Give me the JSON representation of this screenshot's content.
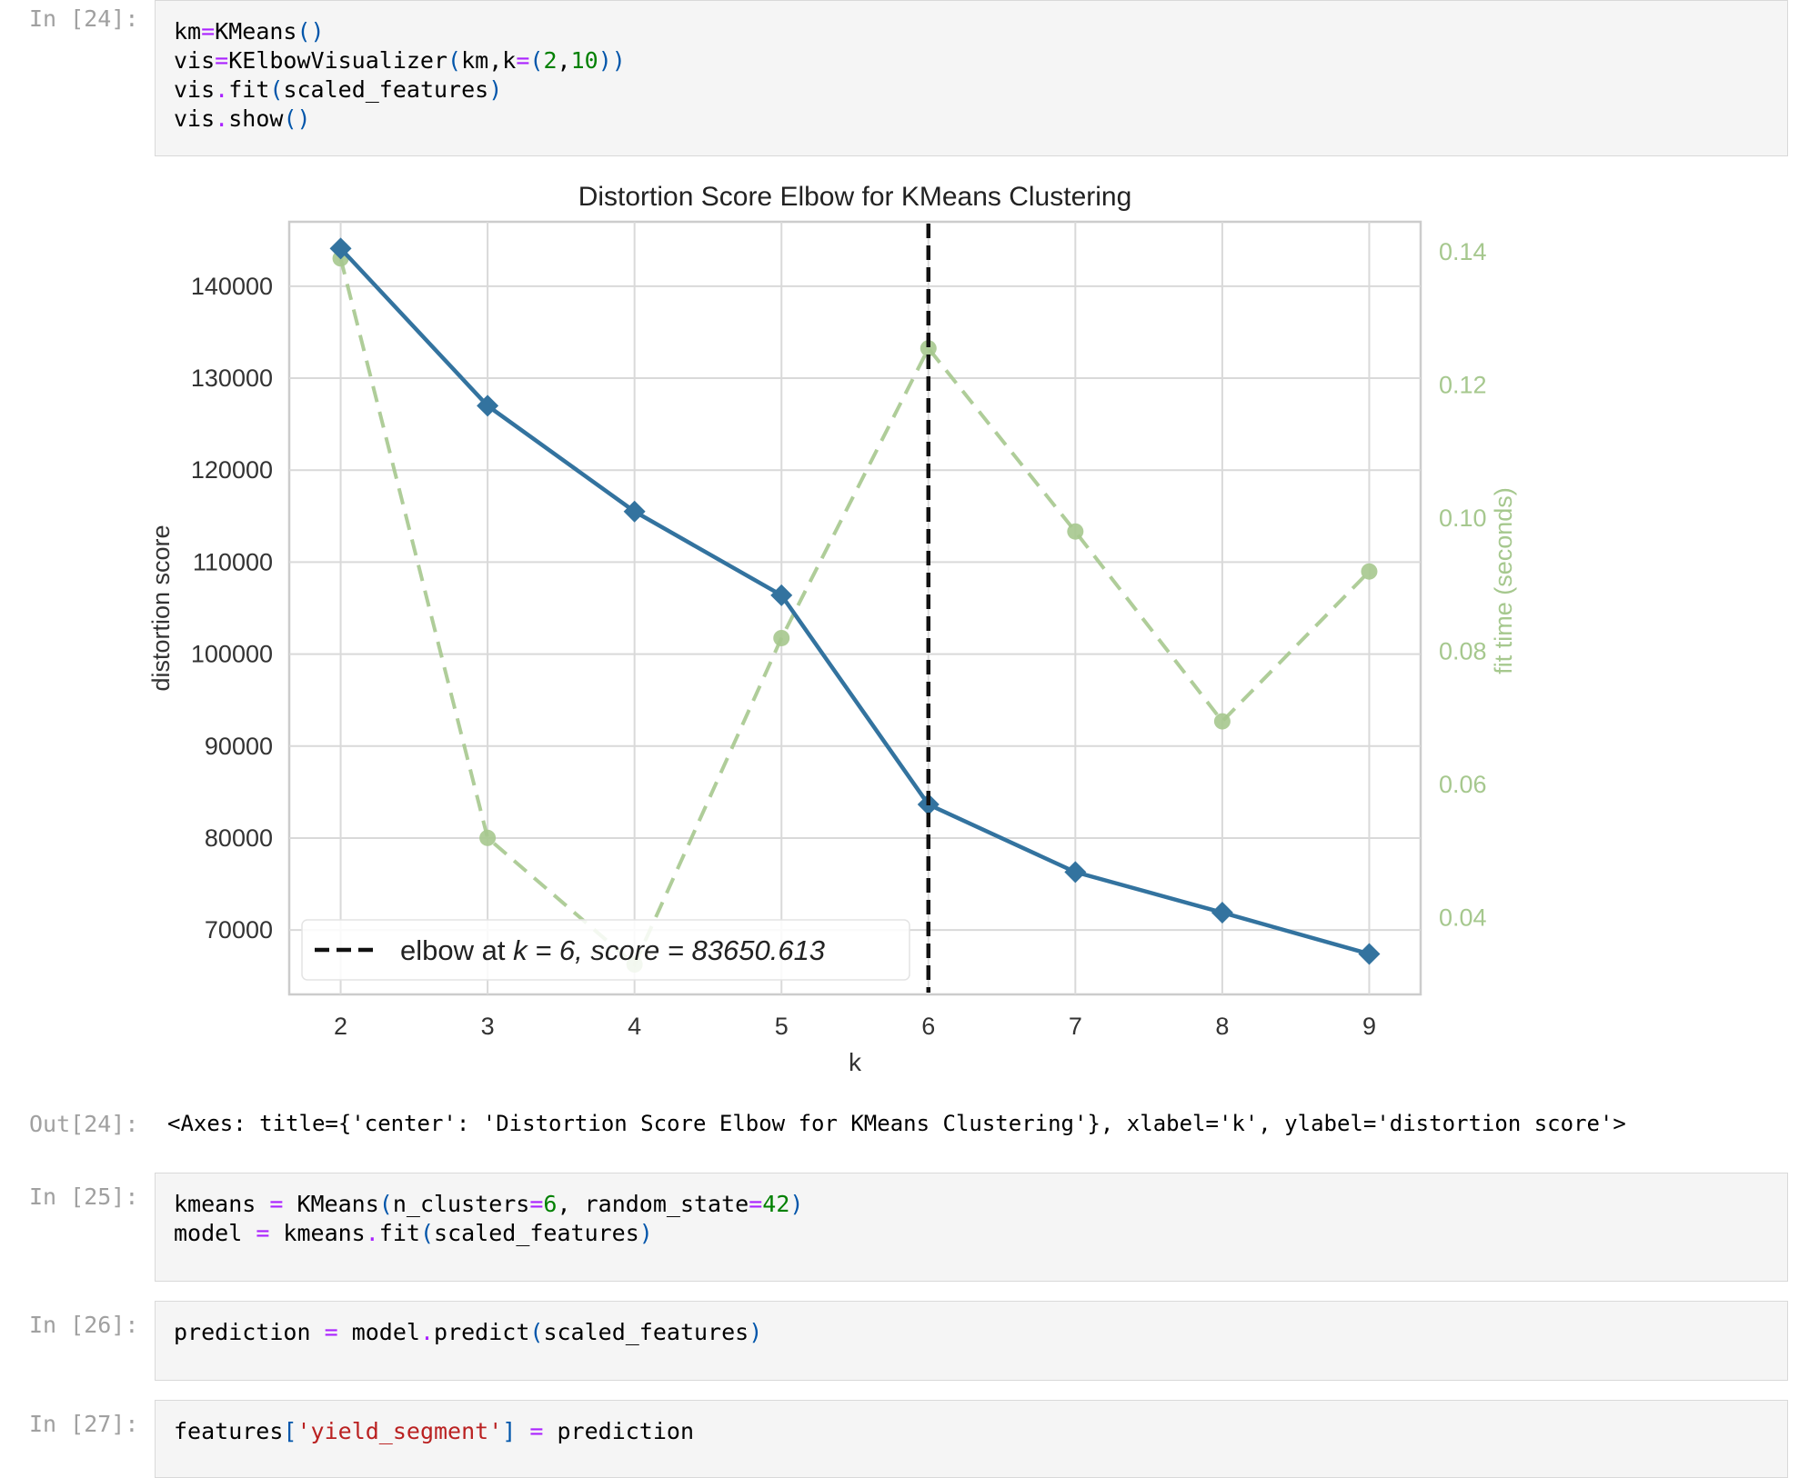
{
  "cells": [
    {
      "prompt": "In [24]:",
      "code_lines": [
        [
          {
            "t": "km"
          },
          {
            "t": "=",
            "c": "op"
          },
          {
            "t": "KMeans"
          },
          {
            "t": "()",
            "c": "paren"
          }
        ],
        [
          {
            "t": "vis"
          },
          {
            "t": "=",
            "c": "op"
          },
          {
            "t": "KElbowVisualizer"
          },
          {
            "t": "(",
            "c": "paren"
          },
          {
            "t": "km,k"
          },
          {
            "t": "=",
            "c": "op"
          },
          {
            "t": "(",
            "c": "paren"
          },
          {
            "t": "2",
            "c": "num"
          },
          {
            "t": ","
          },
          {
            "t": "10",
            "c": "num"
          },
          {
            "t": "))",
            "c": "paren"
          }
        ],
        [
          {
            "t": "vis"
          },
          {
            "t": ".",
            "c": "op"
          },
          {
            "t": "fit"
          },
          {
            "t": "(",
            "c": "paren"
          },
          {
            "t": "scaled_features"
          },
          {
            "t": ")",
            "c": "paren"
          }
        ],
        [
          {
            "t": "vis"
          },
          {
            "t": ".",
            "c": "op"
          },
          {
            "t": "show"
          },
          {
            "t": "()",
            "c": "paren"
          }
        ]
      ]
    },
    {
      "prompt": "In [25]:",
      "code_lines": [
        [
          {
            "t": "kmeans "
          },
          {
            "t": "=",
            "c": "op"
          },
          {
            "t": " KMeans"
          },
          {
            "t": "(",
            "c": "paren"
          },
          {
            "t": "n_clusters"
          },
          {
            "t": "=",
            "c": "op"
          },
          {
            "t": "6",
            "c": "num"
          },
          {
            "t": ", random_state"
          },
          {
            "t": "=",
            "c": "op"
          },
          {
            "t": "42",
            "c": "num"
          },
          {
            "t": ")",
            "c": "paren"
          }
        ],
        [
          {
            "t": "model "
          },
          {
            "t": "=",
            "c": "op"
          },
          {
            "t": " kmeans"
          },
          {
            "t": ".",
            "c": "op"
          },
          {
            "t": "fit"
          },
          {
            "t": "(",
            "c": "paren"
          },
          {
            "t": "scaled_features"
          },
          {
            "t": ")",
            "c": "paren"
          }
        ]
      ]
    },
    {
      "prompt": "In [26]:",
      "code_lines": [
        [
          {
            "t": "prediction "
          },
          {
            "t": "=",
            "c": "op"
          },
          {
            "t": " model"
          },
          {
            "t": ".",
            "c": "op"
          },
          {
            "t": "predict"
          },
          {
            "t": "(",
            "c": "paren"
          },
          {
            "t": "scaled_features"
          },
          {
            "t": ")",
            "c": "paren"
          }
        ]
      ]
    },
    {
      "prompt": "In [27]:",
      "code_lines": [
        [
          {
            "t": "features"
          },
          {
            "t": "[",
            "c": "paren"
          },
          {
            "t": "'yield_segment'",
            "c": "str"
          },
          {
            "t": "]",
            "c": "paren"
          },
          {
            "t": " "
          },
          {
            "t": "=",
            "c": "op"
          },
          {
            "t": " prediction"
          }
        ]
      ]
    }
  ],
  "output": {
    "prompt": "Out[24]:",
    "text": "<Axes: title={'center': 'Distortion Score Elbow for KMeans Clustering'}, xlabel='k', ylabel='distortion score'>"
  },
  "colors": {
    "distortion_line": "#33739f",
    "fit_time_line": "#a6c88e",
    "fit_time_label": "#a6c88e",
    "elbow_line": "#111111",
    "grid": "#d9d9d9"
  },
  "chart_data": {
    "type": "line",
    "title": "Distortion Score Elbow for KMeans Clustering",
    "xlabel": "k",
    "ylabel": "distortion score",
    "y2label": "fit time (seconds)",
    "x": [
      2,
      3,
      4,
      5,
      6,
      7,
      8,
      9
    ],
    "xlim": [
      1.65,
      9.35
    ],
    "ylim": [
      63000,
      147000
    ],
    "y2lim": [
      0.0285,
      0.1445
    ],
    "yticks": [
      70000,
      80000,
      90000,
      100000,
      110000,
      120000,
      130000,
      140000
    ],
    "y2ticks": [
      0.04,
      0.06,
      0.08,
      0.1,
      0.12,
      0.14
    ],
    "y2tick_labels": [
      "0.04",
      "0.06",
      "0.08",
      "0.10",
      "0.12",
      "0.14"
    ],
    "grid": true,
    "legend_position": "lower-left",
    "legend": {
      "elbow_label_prefix": "elbow at",
      "k_label": "k = 6",
      "score_label": "score = 83650.613"
    },
    "elbow_k": 6,
    "series": [
      {
        "name": "distortion score",
        "axis": "left",
        "marker": "diamond",
        "style": "solid",
        "values": [
          144100,
          127000,
          115500,
          106400,
          83650.613,
          76300,
          71900,
          67400
        ]
      },
      {
        "name": "fit time (seconds)",
        "axis": "right",
        "marker": "circle",
        "style": "dashed",
        "values": [
          0.139,
          0.052,
          0.033,
          0.082,
          0.1255,
          0.098,
          0.0695,
          0.092
        ]
      }
    ]
  }
}
